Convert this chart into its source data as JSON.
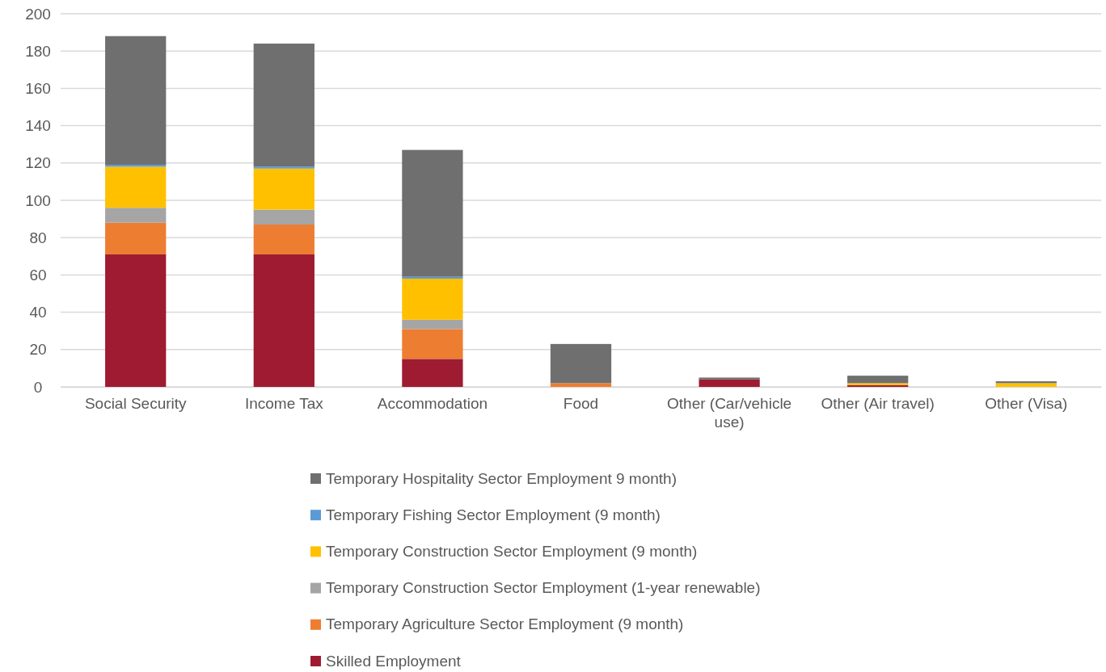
{
  "chart_data": {
    "type": "bar",
    "stacked": true,
    "categories": [
      "Social Security",
      "Income Tax",
      "Accommodation",
      "Food",
      "Other (Car/vehicle use)",
      "Other (Air travel)",
      "Other (Visa)"
    ],
    "series": [
      {
        "name": "Skilled Employment",
        "color": "#9e1b32",
        "values": [
          71,
          71,
          15,
          0,
          4,
          1,
          0
        ]
      },
      {
        "name": "Temporary Agriculture Sector Employment (9 month)",
        "color": "#ed7d31",
        "values": [
          17,
          16,
          16,
          2,
          0,
          0,
          0
        ]
      },
      {
        "name": "Temporary Construction Sector Employment (1-year renewable)",
        "color": "#a5a5a5",
        "values": [
          8,
          8,
          5,
          0,
          0,
          0,
          0
        ]
      },
      {
        "name": "Temporary Construction Sector Employment (9 month)",
        "color": "#ffc000",
        "values": [
          22,
          22,
          22,
          0,
          0,
          1,
          2
        ]
      },
      {
        "name": "Temporary Fishing Sector Employment (9 month)",
        "color": "#5b9bd5",
        "values": [
          1,
          1,
          1,
          0,
          0,
          0,
          0
        ]
      },
      {
        "name": "Temporary Hospitality Sector Employment 9 month)",
        "color": "#6f6f6f",
        "values": [
          69,
          66,
          68,
          21,
          1,
          4,
          1
        ]
      }
    ],
    "ylim": [
      0,
      200
    ],
    "yticks": [
      0,
      20,
      40,
      60,
      80,
      100,
      120,
      140,
      160,
      180,
      200
    ],
    "grid": "y",
    "legend": "bottom"
  }
}
